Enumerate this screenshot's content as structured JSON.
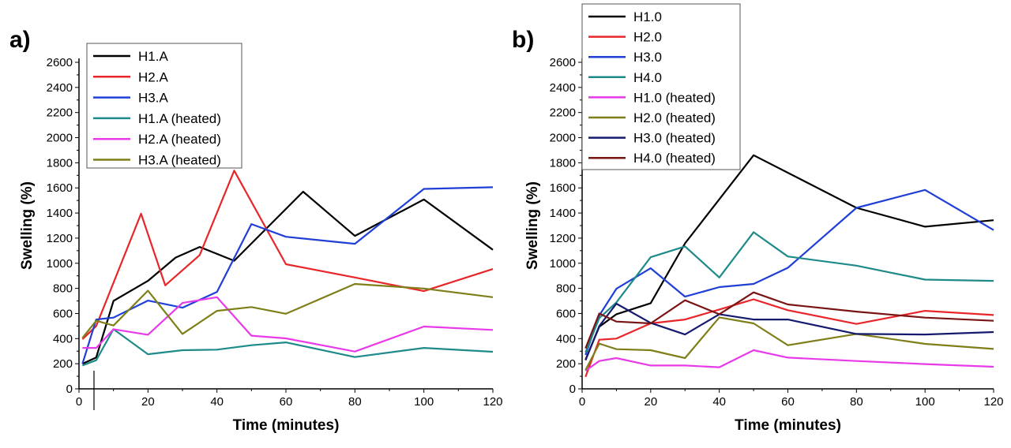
{
  "chart_data": [
    {
      "type": "line",
      "panel_label": "a)",
      "xlabel": "Time (minutes)",
      "ylabel": "Swelling (%)",
      "xlim": [
        0,
        120
      ],
      "ylim": [
        0,
        2600
      ],
      "xticks": [
        0,
        20,
        40,
        60,
        80,
        100,
        120
      ],
      "yticks": [
        0,
        200,
        400,
        600,
        800,
        1000,
        1200,
        1400,
        1600,
        1800,
        2000,
        2200,
        2400,
        2600
      ],
      "grid": false,
      "legend_position": "top-left",
      "series": [
        {
          "name": "H1.A",
          "color": "#000000",
          "x": [
            1,
            5,
            10,
            20,
            28,
            35,
            45,
            65,
            80,
            100,
            120
          ],
          "y": [
            200,
            250,
            700,
            860,
            1045,
            1130,
            1020,
            1570,
            1218,
            1508,
            1107
          ]
        },
        {
          "name": "H2.A",
          "color": "#e8262a",
          "x": [
            1,
            5,
            18,
            25,
            35,
            45,
            60,
            80,
            100,
            120
          ],
          "y": [
            395,
            500,
            1395,
            824,
            1065,
            1738,
            992,
            887,
            778,
            954
          ]
        },
        {
          "name": "H3.A",
          "color": "#1f3fd6",
          "x": [
            1,
            5,
            10,
            20,
            30,
            40,
            50,
            60,
            80,
            100,
            120
          ],
          "y": [
            200,
            552,
            567,
            703,
            646,
            772,
            1312,
            1211,
            1155,
            1592,
            1605
          ]
        },
        {
          "name": "H1.A (heated)",
          "color": "#1e8a8a",
          "x": [
            1,
            5,
            10,
            20,
            30,
            40,
            50,
            60,
            80,
            100,
            120
          ],
          "y": [
            186,
            228,
            475,
            276,
            308,
            312,
            347,
            370,
            253,
            326,
            295
          ]
        },
        {
          "name": "H2.A (heated)",
          "color": "#e83ae8",
          "x": [
            1,
            5,
            10,
            20,
            30,
            40,
            50,
            60,
            80,
            100,
            120
          ],
          "y": [
            326,
            326,
            475,
            431,
            684,
            730,
            423,
            402,
            297,
            496,
            469
          ]
        },
        {
          "name": "H3.A (heated)",
          "color": "#7f7f1a",
          "x": [
            1,
            5,
            10,
            20,
            30,
            40,
            50,
            60,
            80,
            100,
            120
          ],
          "y": [
            406,
            542,
            504,
            782,
            437,
            621,
            651,
            598,
            835,
            799,
            730
          ]
        }
      ]
    },
    {
      "type": "line",
      "panel_label": "b)",
      "xlabel": "Time (minutes)",
      "ylabel": "Swelling (%)",
      "xlim": [
        0,
        120
      ],
      "ylim": [
        0,
        2600
      ],
      "xticks": [
        0,
        20,
        40,
        60,
        80,
        100,
        120
      ],
      "yticks": [
        0,
        200,
        400,
        600,
        800,
        1000,
        1200,
        1400,
        1600,
        1800,
        2000,
        2200,
        2400,
        2600
      ],
      "grid": false,
      "legend_position": "top-left",
      "series": [
        {
          "name": "H1.0",
          "color": "#000000",
          "x": [
            1,
            5,
            10,
            20,
            30,
            50,
            80,
            100,
            120
          ],
          "y": [
            232,
            494,
            594,
            682,
            1159,
            1860,
            1441,
            1291,
            1343
          ]
        },
        {
          "name": "H2.0",
          "color": "#e8262a",
          "x": [
            1,
            5,
            10,
            20,
            30,
            40,
            50,
            60,
            80,
            100,
            120
          ],
          "y": [
            96,
            391,
            400,
            521,
            552,
            632,
            713,
            626,
            517,
            621,
            588
          ]
        },
        {
          "name": "H3.0",
          "color": "#1f3fd6",
          "x": [
            1,
            5,
            10,
            20,
            30,
            40,
            50,
            60,
            80,
            100,
            120
          ],
          "y": [
            270,
            584,
            797,
            960,
            734,
            810,
            835,
            964,
            1441,
            1584,
            1264
          ]
        },
        {
          "name": "H4.0",
          "color": "#1e8a8a",
          "x": [
            1,
            5,
            10,
            20,
            30,
            40,
            50,
            60,
            80,
            100,
            120
          ],
          "y": [
            291,
            563,
            688,
            1048,
            1134,
            887,
            1247,
            1054,
            981,
            870,
            860
          ]
        },
        {
          "name": "H1.0 (heated)",
          "color": "#e83ae8",
          "x": [
            1,
            5,
            10,
            20,
            30,
            40,
            50,
            60,
            80,
            100,
            120
          ],
          "y": [
            144,
            222,
            245,
            186,
            186,
            172,
            308,
            249,
            222,
            197,
            176
          ]
        },
        {
          "name": "H2.0 (heated)",
          "color": "#7f7f1a",
          "x": [
            1,
            5,
            10,
            20,
            30,
            40,
            50,
            60,
            80,
            100,
            120
          ],
          "y": [
            149,
            360,
            316,
            308,
            245,
            569,
            521,
            347,
            437,
            358,
            318
          ]
        },
        {
          "name": "H3.0 (heated)",
          "color": "#141a6e",
          "x": [
            1,
            5,
            10,
            20,
            30,
            40,
            50,
            60,
            80,
            100,
            120
          ],
          "y": [
            228,
            500,
            678,
            525,
            433,
            594,
            552,
            552,
            437,
            433,
            452
          ]
        },
        {
          "name": "H4.0 (heated)",
          "color": "#7a1414",
          "x": [
            1,
            5,
            10,
            20,
            30,
            40,
            50,
            60,
            80,
            100,
            120
          ],
          "y": [
            322,
            600,
            536,
            521,
            705,
            594,
            768,
            672,
            615,
            567,
            542
          ]
        }
      ]
    }
  ]
}
